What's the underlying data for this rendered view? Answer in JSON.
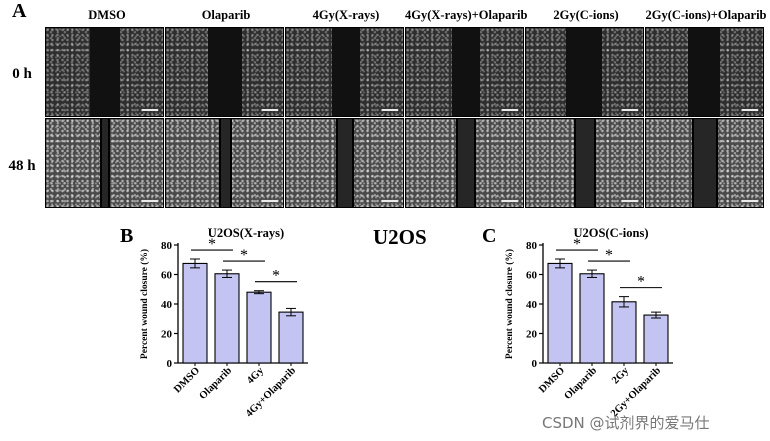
{
  "panel_labels": {
    "a": "A",
    "b": "B",
    "c": "C"
  },
  "panel_a": {
    "columns": [
      "DMSO",
      "Olaparib",
      "4Gy(X-rays)",
      "4Gy(X-rays)+Olaparib",
      "2Gy(C-ions)",
      "2Gy(C-ions)+Olaparib"
    ],
    "rows": [
      "0 h",
      "48 h"
    ]
  },
  "center_title": "U2OS",
  "colors": {
    "bar_fill": "#c4c4f2",
    "axis": "#000000"
  },
  "chart_data": [
    {
      "type": "bar",
      "title": "U2OS(X-rays)",
      "xlabel": "",
      "ylabel": "Percent wound closure (%)",
      "ylim": [
        0,
        80
      ],
      "yticks": [
        0,
        20,
        40,
        60,
        80
      ],
      "categories": [
        "DMSO",
        "Olaparib",
        "4Gy",
        "4Gy+Olaparib"
      ],
      "values": [
        67.5,
        60.5,
        48,
        34.5
      ],
      "errors": [
        3,
        2.5,
        1,
        2.5
      ],
      "significance": [
        {
          "pair": [
            0,
            1
          ],
          "label": "*"
        },
        {
          "pair": [
            1,
            2
          ],
          "label": "*"
        },
        {
          "pair": [
            2,
            3
          ],
          "label": "*"
        }
      ]
    },
    {
      "type": "bar",
      "title": "U2OS(C-ions)",
      "xlabel": "",
      "ylabel": "Percent wound closure (%)",
      "ylim": [
        0,
        80
      ],
      "yticks": [
        0,
        20,
        40,
        60,
        80
      ],
      "categories": [
        "DMSO",
        "Olaparib",
        "2Gy",
        "2Gy+Olaparib"
      ],
      "values": [
        67.5,
        60.5,
        41.5,
        32.5
      ],
      "errors": [
        3,
        2.5,
        3.5,
        2
      ],
      "significance": [
        {
          "pair": [
            0,
            1
          ],
          "label": "*"
        },
        {
          "pair": [
            1,
            2
          ],
          "label": "*"
        },
        {
          "pair": [
            2,
            3
          ],
          "label": "*"
        }
      ]
    }
  ],
  "watermark": "CSDN @试剂界的爱马仕"
}
